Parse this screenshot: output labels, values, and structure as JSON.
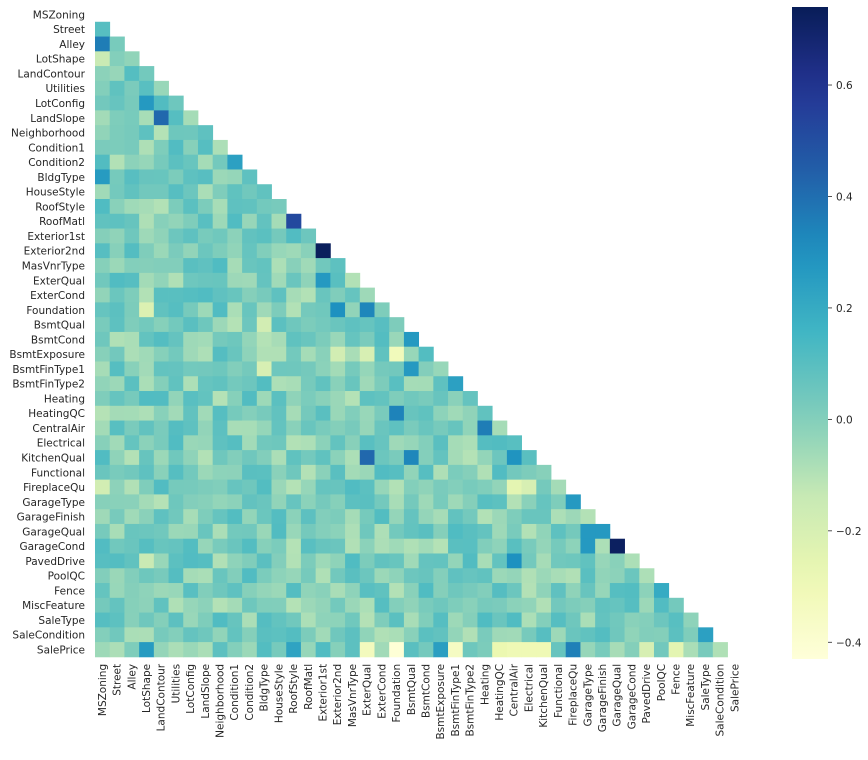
{
  "chart_data": {
    "type": "heatmap",
    "title": "",
    "xlabel": "",
    "ylabel": "",
    "mask": "upper triangle (diagonal and above hidden)",
    "colormap": "YlGnBu",
    "labels": [
      "MSZoning",
      "Street",
      "Alley",
      "LotShape",
      "LandContour",
      "Utilities",
      "LotConfig",
      "LandSlope",
      "Neighborhood",
      "Condition1",
      "Condition2",
      "BldgType",
      "HouseStyle",
      "RoofStyle",
      "RoofMatl",
      "Exterior1st",
      "Exterior2nd",
      "MasVnrType",
      "ExterQual",
      "ExterCond",
      "Foundation",
      "BsmtQual",
      "BsmtCond",
      "BsmtExposure",
      "BsmtFinType1",
      "BsmtFinType2",
      "Heating",
      "HeatingQC",
      "CentralAir",
      "Electrical",
      "KitchenQual",
      "Functional",
      "FireplaceQu",
      "GarageType",
      "GarageFinish",
      "GarageQual",
      "GarageCond",
      "PavedDrive",
      "PoolQC",
      "Fence",
      "MiscFeature",
      "SaleType",
      "SaleCondition",
      "SalePrice"
    ],
    "colorbar": {
      "vmin": -0.43,
      "vmax": 0.74,
      "ticks": [
        0.6,
        0.4,
        0.2,
        0.0,
        -0.2,
        -0.4
      ],
      "tick_labels": [
        "0.6",
        "0.4",
        "0.2",
        "0.0",
        "−0.2",
        "−0.4"
      ]
    },
    "highlights": [
      {
        "row": "Exterior2nd",
        "col": "Exterior1st",
        "value": 0.73
      },
      {
        "row": "GarageCond",
        "col": "GarageQual",
        "value": 0.72
      },
      {
        "row": "RoofMatl",
        "col": "RoofStyle",
        "value": 0.52
      },
      {
        "row": "LandSlope",
        "col": "LandContour",
        "value": 0.42
      },
      {
        "row": "KitchenQual",
        "col": "ExterQual",
        "value": 0.42
      },
      {
        "row": "Alley",
        "col": "MSZoning",
        "value": 0.36
      },
      {
        "row": "CentralAir",
        "col": "Heating",
        "value": 0.36
      },
      {
        "row": "HeatingQC",
        "col": "Foundation",
        "value": 0.34
      },
      {
        "row": "Foundation",
        "col": "ExterQual",
        "value": 0.33
      },
      {
        "row": "SalePrice",
        "col": "FireplaceQu",
        "value": 0.35
      },
      {
        "row": "GarageQual",
        "col": "GarageType",
        "value": 0.27
      },
      {
        "row": "GarageCond",
        "col": "GarageType",
        "value": 0.27
      },
      {
        "row": "GarageQual",
        "col": "GarageFinish",
        "value": 0.27
      },
      {
        "row": "GarageType",
        "col": "FireplaceQu",
        "value": 0.27
      },
      {
        "row": "BsmtCond",
        "col": "BsmtQual",
        "value": 0.27
      },
      {
        "row": "BsmtFinType2",
        "col": "BsmtFinType1",
        "value": 0.24
      },
      {
        "row": "BldgType",
        "col": "MSZoning",
        "value": 0.26
      },
      {
        "row": "LotConfig",
        "col": "LotShape",
        "value": 0.27
      },
      {
        "row": "Condition2",
        "col": "Condition1",
        "value": 0.24
      },
      {
        "row": "KitchenQual",
        "col": "BsmtQual",
        "value": 0.33
      },
      {
        "row": "KitchenQual",
        "col": "CentralAir",
        "value": 0.29
      },
      {
        "row": "PavedDrive",
        "col": "CentralAir",
        "value": 0.3
      },
      {
        "row": "SalePrice",
        "col": "LotShape",
        "value": 0.26
      },
      {
        "row": "SalePrice",
        "col": "BsmtExposure",
        "value": 0.25
      },
      {
        "row": "SalePrice",
        "col": "RoofStyle",
        "value": 0.23
      },
      {
        "row": "SaleCondition",
        "col": "SaleType",
        "value": 0.24
      },
      {
        "row": "Fence",
        "col": "PoolQC",
        "value": 0.2
      },
      {
        "row": "ExterQual",
        "col": "Exterior1st",
        "value": 0.27
      },
      {
        "row": "Foundation",
        "col": "Exterior2nd",
        "value": 0.3
      },
      {
        "row": "BsmtFinType1",
        "col": "BsmtQual",
        "value": 0.27
      },
      {
        "row": "SalePrice",
        "col": "Foundation",
        "value": -0.42
      },
      {
        "row": "SalePrice",
        "col": "BsmtFinType1",
        "value": -0.35
      },
      {
        "row": "BsmtExposure",
        "col": "Foundation",
        "value": -0.32
      },
      {
        "row": "SalePrice",
        "col": "ExterQual",
        "value": -0.33
      },
      {
        "row": "SalePrice",
        "col": "KitchenQual",
        "value": -0.3
      },
      {
        "row": "SalePrice",
        "col": "HeatingQC",
        "value": -0.28
      },
      {
        "row": "SalePrice",
        "col": "CentralAir",
        "value": -0.3
      },
      {
        "row": "SalePrice",
        "col": "Electrical",
        "value": -0.3
      },
      {
        "row": "SalePrice",
        "col": "Fence",
        "value": -0.25
      },
      {
        "row": "FireplaceQu",
        "col": "CentralAir",
        "value": -0.25
      },
      {
        "row": "FireplaceQu",
        "col": "Electrical",
        "value": -0.2
      },
      {
        "row": "Foundation",
        "col": "LotShape",
        "value": -0.22
      },
      {
        "row": "BsmtQual",
        "col": "BldgType",
        "value": -0.18
      },
      {
        "row": "BsmtFinType1",
        "col": "BldgType",
        "value": -0.2
      },
      {
        "row": "FireplaceQu",
        "col": "MSZoning",
        "value": -0.18
      },
      {
        "row": "LotShape",
        "col": "MSZoning",
        "value": -0.15
      },
      {
        "row": "BsmtExposure",
        "col": "ExterQual",
        "value": -0.2
      },
      {
        "row": "BsmtExposure",
        "col": "Exterior2nd",
        "value": -0.18
      },
      {
        "row": "PavedDrive",
        "col": "LotShape",
        "value": -0.15
      },
      {
        "row": "SalePrice",
        "col": "PavedDrive",
        "value": -0.2
      }
    ]
  }
}
